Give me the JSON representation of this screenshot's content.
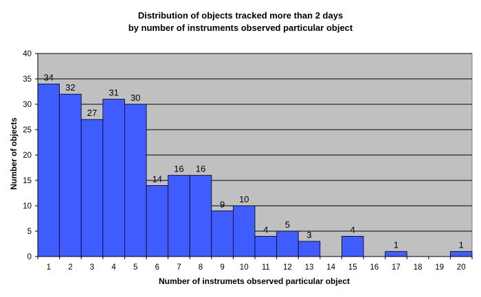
{
  "chart_data": {
    "type": "bar",
    "title_line1": "Distribution of objects tracked more than 2 days",
    "title_line2": "by number of instruments observed particular object",
    "xlabel": "Number of instrumets observed particular object",
    "ylabel": "Number of objects",
    "categories": [
      "1",
      "2",
      "3",
      "4",
      "5",
      "6",
      "7",
      "8",
      "9",
      "10",
      "11",
      "12",
      "13",
      "14",
      "15",
      "16",
      "17",
      "18",
      "19",
      "20"
    ],
    "values": [
      34,
      32,
      27,
      31,
      30,
      14,
      16,
      16,
      9,
      10,
      4,
      5,
      3,
      0,
      4,
      0,
      1,
      0,
      0,
      1
    ],
    "data_labels": [
      "34",
      "32",
      "27",
      "31",
      "30",
      "14",
      "16",
      "16",
      "9",
      "10",
      "4",
      "5",
      "3",
      "",
      "4",
      "",
      "1",
      "",
      "",
      "1"
    ],
    "ylim": [
      0,
      40
    ],
    "yticks": [
      0,
      5,
      10,
      15,
      20,
      25,
      30,
      35,
      40
    ],
    "grid": true,
    "legend": "none",
    "colors": {
      "bar_fill": "#3e5cff",
      "bar_stroke": "#000000",
      "plot_background": "#c0c0c0",
      "gridline": "#000000"
    }
  }
}
